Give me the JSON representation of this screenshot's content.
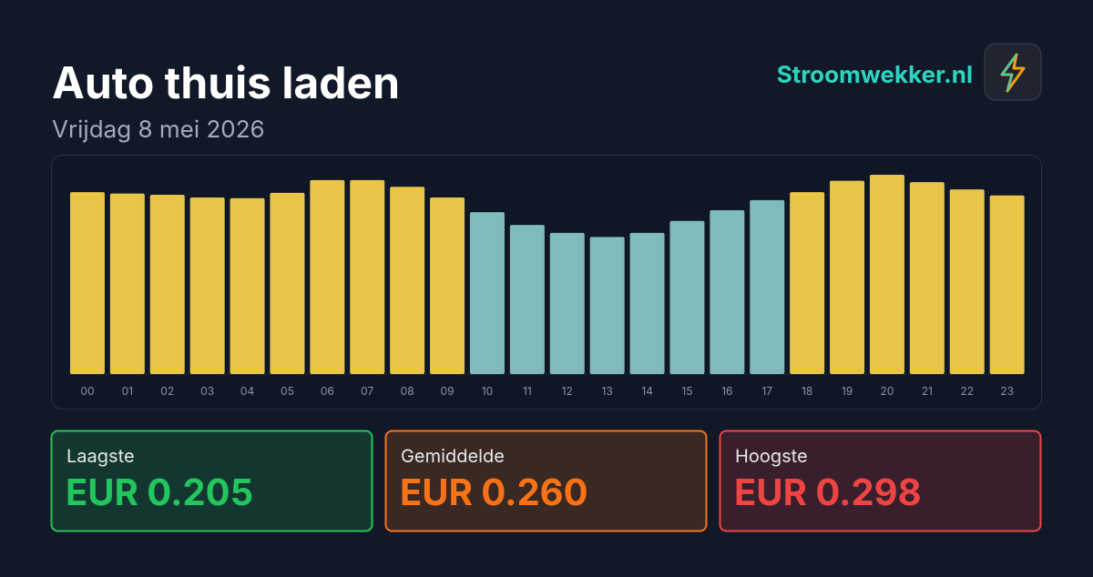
{
  "chart_data": {
    "type": "bar",
    "title": "Auto thuis laden",
    "subtitle": "Vrijdag 8 mei 2026",
    "brand": "Stroomwekker.nl",
    "categories": [
      "00",
      "01",
      "02",
      "03",
      "04",
      "05",
      "06",
      "07",
      "08",
      "09",
      "10",
      "11",
      "12",
      "13",
      "14",
      "15",
      "16",
      "17",
      "18",
      "19",
      "20",
      "21",
      "22",
      "23"
    ],
    "values": [
      0.272,
      0.27,
      0.268,
      0.264,
      0.263,
      0.271,
      0.29,
      0.29,
      0.28,
      0.264,
      0.242,
      0.223,
      0.211,
      0.205,
      0.211,
      0.229,
      0.245,
      0.26,
      0.272,
      0.289,
      0.298,
      0.287,
      0.276,
      0.267
    ],
    "colors": [
      "#e8c547",
      "#e8c547",
      "#e8c547",
      "#e8c547",
      "#e8c547",
      "#e8c547",
      "#e8c547",
      "#e8c547",
      "#e8c547",
      "#e8c547",
      "#7fbbbb",
      "#7fbbbb",
      "#7fbbbb",
      "#7fbbbb",
      "#7fbbbb",
      "#7fbbbb",
      "#7fbbbb",
      "#7fbbbb",
      "#e8c547",
      "#e8c547",
      "#e8c547",
      "#e8c547",
      "#e8c547",
      "#e8c547"
    ],
    "stats": {
      "labels": [
        "Laagste",
        "Gemiddelde",
        "Hoogste"
      ],
      "values": [
        0.205,
        0.26,
        0.298
      ],
      "value_labels": [
        "EUR 0.205",
        "EUR 0.260",
        "EUR 0.298"
      ],
      "colors": [
        "#22c55e",
        "#f97316",
        "#ef4444"
      ]
    }
  }
}
